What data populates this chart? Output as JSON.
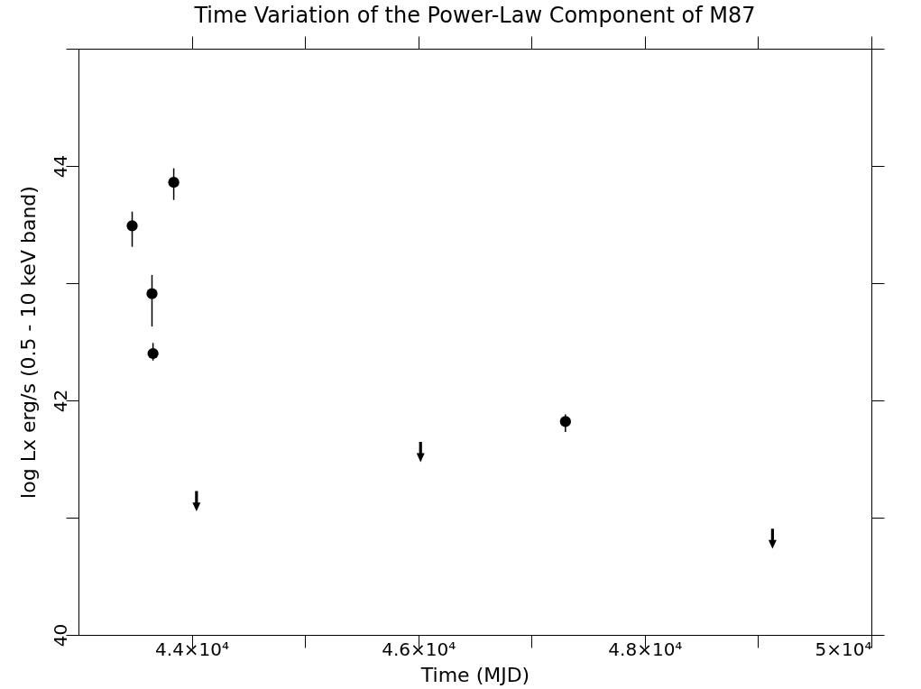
{
  "chart_data": {
    "type": "scatter",
    "title": "Time Variation of the Power-Law Component of M87",
    "xlabel": "Time (MJD)",
    "ylabel": "log Lx erg/s (0.5 - 10 keV band)",
    "series": [
      {
        "color": "#000000",
        "marker": "circle",
        "x": [
          43474,
          43841,
          43649,
          43658,
          47299
        ],
        "values": [
          43.49,
          43.86,
          42.91,
          42.4,
          41.82
        ],
        "errors": [
          [
            43.31,
            43.61
          ],
          [
            43.71,
            43.98
          ],
          [
            42.63,
            43.07
          ],
          [
            42.34,
            42.49
          ],
          [
            41.73,
            41.88
          ]
        ]
      },
      {
        "color": "#000000",
        "x": [
          44042,
          46020,
          49127
        ],
        "values": [
          41.14,
          41.56,
          40.82
        ]
      }
    ],
    "xlim": [
      43000,
      50000
    ],
    "xticks": [
      {
        "value": 44000,
        "label": "4.4×10⁴"
      },
      {
        "value": 45000,
        "label": null
      },
      {
        "value": 46000,
        "label": "4.6×10⁴"
      },
      {
        "value": 47000,
        "label": null
      },
      {
        "value": 48000,
        "label": "4.8×10⁴"
      },
      {
        "value": 49000,
        "label": null
      },
      {
        "value": 50000,
        "label": "5×10⁴"
      }
    ],
    "ylim": [
      40,
      45
    ],
    "yticks": [
      40,
      {
        "value": 41,
        "label": null
      },
      42,
      {
        "value": 43,
        "label": null
      },
      44,
      {
        "value": 45,
        "label": null
      }
    ],
    "grid": false
  }
}
